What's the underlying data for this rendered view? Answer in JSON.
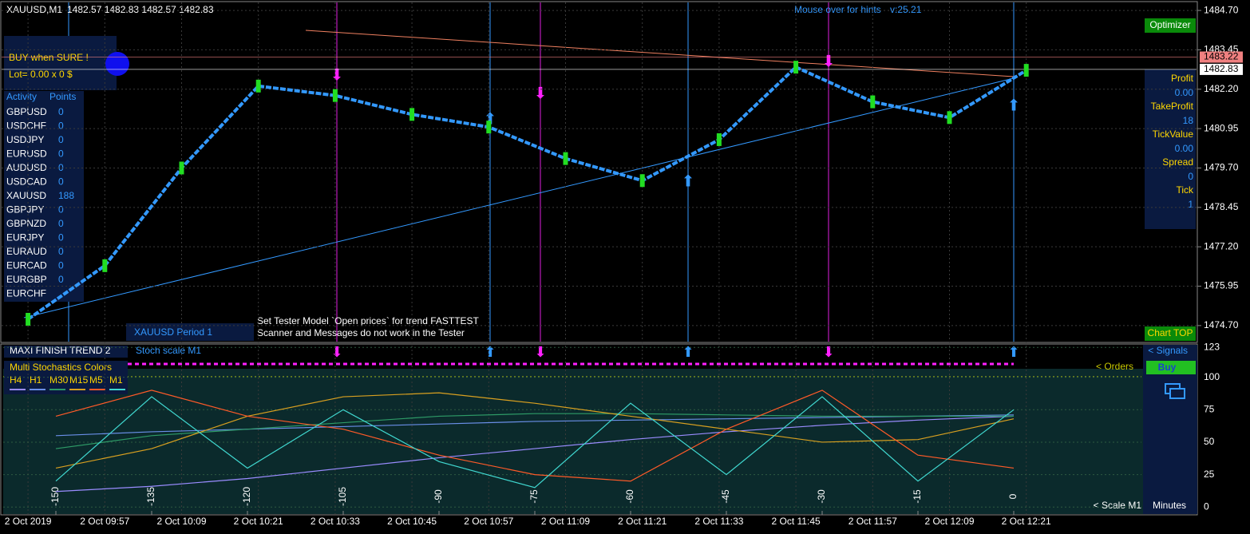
{
  "chart_data": [
    {
      "type": "line",
      "categories": [
        "2 Oct 2019",
        "2 Oct 09:57",
        "2 Oct 10:09",
        "2 Oct 10:21",
        "2 Oct 10:33",
        "2 Oct 10:45",
        "2 Oct 10:57",
        "2 Oct 11:09",
        "2 Oct 11:21",
        "2 Oct 11:33",
        "2 Oct 11:45",
        "2 Oct 11:57",
        "2 Oct 12:09",
        "2 Oct 12:21"
      ],
      "values": [
        1474.9,
        1476.6,
        1479.7,
        1482.3,
        1482.0,
        1481.4,
        1481.0,
        1480.0,
        1479.3,
        1480.6,
        1482.9,
        1481.8,
        1481.3,
        1482.8
      ],
      "color": "#3399ff",
      "ylim": [
        1474.19,
        1484.93
      ],
      "yticks": [
        {
          "value": 1484.7,
          "label": "1484.70"
        },
        1483.45,
        {
          "value": 1482.2,
          "label": "1482.20"
        },
        1480.95,
        {
          "value": 1479.7,
          "label": "1479.70"
        },
        1478.45,
        {
          "value": 1477.2,
          "label": "1477.20"
        },
        1475.95,
        {
          "value": 1474.7,
          "label": "1474.70"
        }
      ],
      "hlines": [
        {
          "value": 1483.22,
          "color": "#f08080"
        },
        {
          "value": 1482.83,
          "color": "#ffffff"
        }
      ],
      "grid": true
    },
    {
      "type": "line",
      "title": "MAXI FINISH TREND 2",
      "subtitle": "Stoch scale M1",
      "legend_title": "Multi Stochastics Colors",
      "x": [
        -150,
        -135,
        -120,
        -105,
        -90,
        -75,
        -60,
        -45,
        -30,
        -15,
        0
      ],
      "xlim": [
        -158.75,
        20
      ],
      "xticks": [
        -150,
        -135,
        -120,
        -105,
        -90,
        -75,
        -60,
        -45,
        -30,
        -15,
        0
      ],
      "ylim": [
        -6,
        125
      ],
      "yticks": [
        0,
        25,
        50,
        75,
        100,
        123
      ],
      "series": [
        {
          "name": "H4",
          "color": "#9a8cff",
          "values": [
            12,
            16,
            22,
            30,
            38,
            45,
            52,
            58,
            63,
            67,
            70
          ]
        },
        {
          "name": "H1",
          "color": "#6a8fe8",
          "values": [
            55,
            58,
            60,
            62,
            64,
            66,
            67,
            68,
            69,
            70,
            71
          ]
        },
        {
          "name": "M30",
          "color": "#2e9b67",
          "values": [
            45,
            55,
            60,
            65,
            70,
            72,
            72,
            71,
            70,
            70,
            70
          ]
        },
        {
          "name": "M15",
          "color": "#d9a020",
          "values": [
            30,
            45,
            70,
            85,
            88,
            80,
            70,
            60,
            50,
            52,
            68
          ]
        },
        {
          "name": "M5",
          "color": "#ff5a28",
          "values": [
            70,
            90,
            70,
            60,
            40,
            25,
            20,
            60,
            90,
            40,
            30
          ]
        },
        {
          "name": "M1",
          "color": "#40d8d0",
          "values": [
            20,
            85,
            30,
            75,
            35,
            15,
            80,
            25,
            85,
            20,
            75
          ]
        }
      ]
    }
  ],
  "ui": {
    "symbol": "XAUUSD,M1",
    "ohlc": "1482.57 1482.83 1482.57 1482.83",
    "hint": "Mouse over for hints",
    "version": "v:25.21",
    "optimizer": "Optimizer",
    "chart_top": "Chart TOP",
    "advice": "BUY when SURE !",
    "lot": "Lot= 0.00 x 0 $",
    "activity_headers": [
      "Activity",
      "Points"
    ],
    "activity_rows": [
      [
        "GBPUSD",
        "0"
      ],
      [
        "USDCHF",
        "0"
      ],
      [
        "USDJPY",
        "0"
      ],
      [
        "EURUSD",
        "0"
      ],
      [
        "AUDUSD",
        "0"
      ],
      [
        "USDCAD",
        "0"
      ],
      [
        "XAUUSD",
        "188"
      ],
      [
        "GBPJPY",
        "0"
      ],
      [
        "GBPNZD",
        "0"
      ],
      [
        "EURJPY",
        "0"
      ],
      [
        "EURAUD",
        "0"
      ],
      [
        "EURCAD",
        "0"
      ],
      [
        "EURGBP",
        "0"
      ],
      [
        "EURCHF",
        ""
      ]
    ],
    "stats": [
      [
        "Profit",
        "0.00"
      ],
      [
        "TakeProfit",
        "18"
      ],
      [
        "TickValue",
        "0.00"
      ],
      [
        "Spread",
        "0"
      ],
      [
        "Tick",
        "1"
      ]
    ],
    "period_label": "XAUUSD Period 1",
    "tester_note": [
      "Set Tester Model `Open prices` for trend FASTTEST",
      "Scanner and Messages do not work in the Tester"
    ],
    "signals": "< Signals",
    "buy": "Buy",
    "orders": "< Orders",
    "scale": "< Scale M1",
    "minutes": "Minutes"
  }
}
